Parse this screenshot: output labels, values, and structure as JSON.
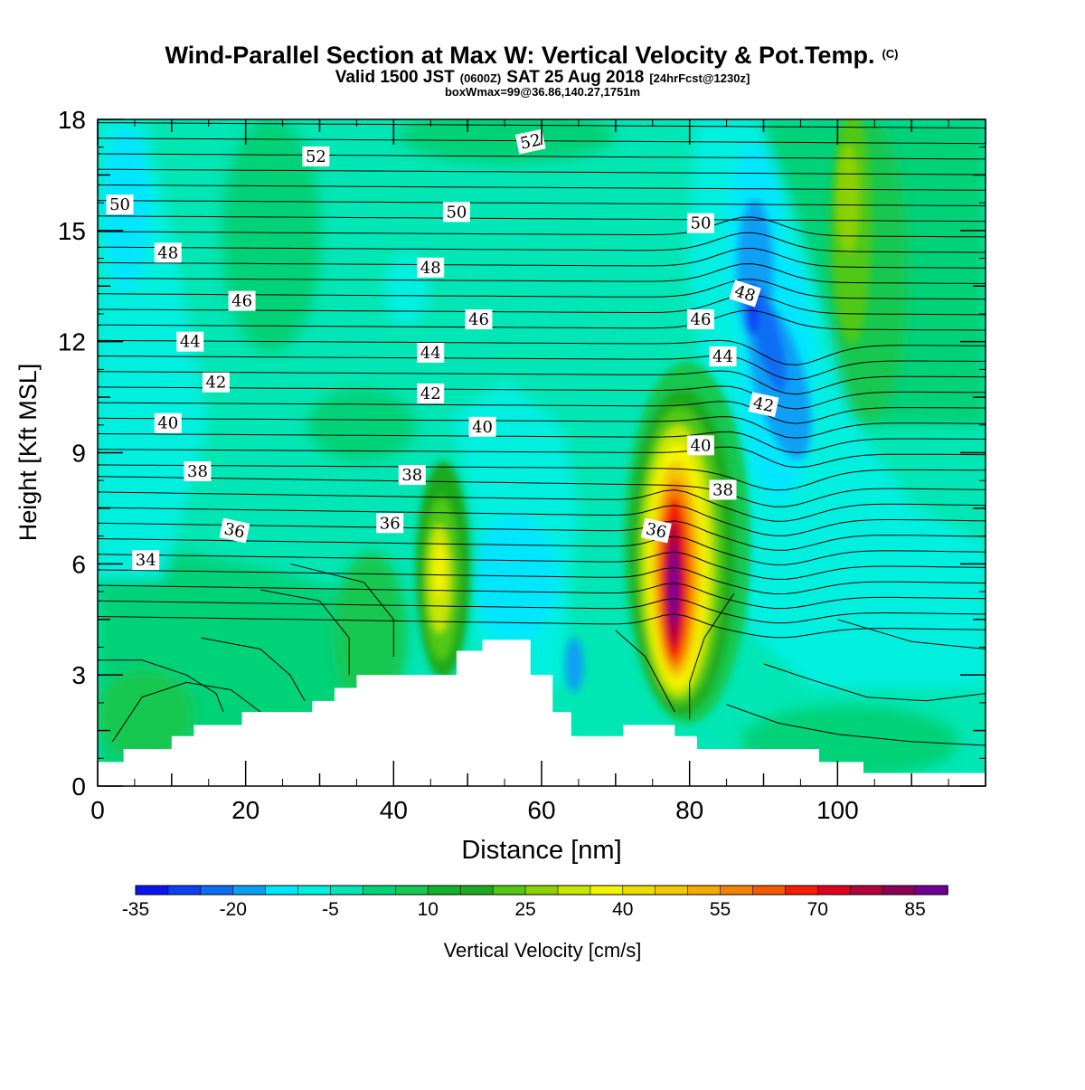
{
  "chart_data": {
    "type": "heatmap",
    "title": "Wind-Parallel Section at Max W: Vertical Velocity & Pot.Temp.",
    "title_mark": "(C)",
    "subtitle": {
      "main_a": "Valid 1500 JST",
      "small_a": "(0600Z)",
      "main_b": "SAT 25 Aug 2018",
      "small_b": "[24hrFcst@1230z]"
    },
    "subtitle2": "boxWmax=99@36.86,140.27,1751m",
    "xlabel": "Distance [nm]",
    "ylabel": "Height [Kft MSL]",
    "xlim": [
      0,
      120
    ],
    "ylim": [
      0,
      18
    ],
    "x_ticks": [
      0,
      20,
      40,
      60,
      80,
      100
    ],
    "y_ticks": [
      0,
      3,
      6,
      9,
      12,
      15,
      18
    ],
    "colorbar": {
      "label": "Vertical Velocity [cm/s]",
      "min": -35,
      "step": 5,
      "tick_labels": [
        -35,
        -20,
        -5,
        10,
        25,
        40,
        55,
        70,
        85
      ],
      "colors": [
        "#0a14f0",
        "#0a41f5",
        "#0a6ef5",
        "#0aa0f5",
        "#00e6ff",
        "#00f0e0",
        "#00e6b4",
        "#00d278",
        "#14c850",
        "#0fb428",
        "#1eaa1e",
        "#50c814",
        "#8cd200",
        "#c8e600",
        "#f5f500",
        "#f0dc00",
        "#f5c800",
        "#f5aa00",
        "#f58200",
        "#f55a00",
        "#f51e00",
        "#e1001e",
        "#b4003c",
        "#8c005a",
        "#6e0096"
      ]
    },
    "terrain": [
      [
        0,
        0.65
      ],
      [
        3.5,
        1.0
      ],
      [
        10,
        1.35
      ],
      [
        13,
        1.65
      ],
      [
        19.5,
        2.0
      ],
      [
        29,
        2.3
      ],
      [
        32,
        2.65
      ],
      [
        35,
        3.0
      ],
      [
        48.5,
        3.65
      ],
      [
        52,
        3.95
      ],
      [
        58.5,
        3.0
      ],
      [
        61.5,
        2.0
      ],
      [
        64,
        1.35
      ],
      [
        71,
        1.65
      ],
      [
        78,
        1.35
      ],
      [
        81,
        1.0
      ],
      [
        97.5,
        0.65
      ],
      [
        103.5,
        0.35
      ],
      [
        120,
        0.35
      ]
    ],
    "contour_labels": [
      {
        "text": "52",
        "x": 29.5,
        "y": 17.0,
        "angle": 0
      },
      {
        "text": "52",
        "x": 58.5,
        "y": 17.4,
        "angle": -12
      },
      {
        "text": "50",
        "x": 3.0,
        "y": 15.7,
        "angle": 0
      },
      {
        "text": "50",
        "x": 48.5,
        "y": 15.5,
        "angle": 0
      },
      {
        "text": "50",
        "x": 81.5,
        "y": 15.2,
        "angle": 0
      },
      {
        "text": "48",
        "x": 9.5,
        "y": 14.4,
        "angle": 0
      },
      {
        "text": "48",
        "x": 45.0,
        "y": 14.0,
        "angle": 0
      },
      {
        "text": "48",
        "x": 87.5,
        "y": 13.3,
        "angle": 18
      },
      {
        "text": "46",
        "x": 19.5,
        "y": 13.1,
        "angle": 0
      },
      {
        "text": "46",
        "x": 51.5,
        "y": 12.6,
        "angle": 0
      },
      {
        "text": "46",
        "x": 81.5,
        "y": 12.6,
        "angle": 0
      },
      {
        "text": "44",
        "x": 12.5,
        "y": 12.0,
        "angle": 0
      },
      {
        "text": "44",
        "x": 45.0,
        "y": 11.7,
        "angle": 0
      },
      {
        "text": "44",
        "x": 84.5,
        "y": 11.6,
        "angle": 0
      },
      {
        "text": "42",
        "x": 16.0,
        "y": 10.9,
        "angle": 0
      },
      {
        "text": "42",
        "x": 45.0,
        "y": 10.6,
        "angle": 0
      },
      {
        "text": "42",
        "x": 90.0,
        "y": 10.3,
        "angle": 12
      },
      {
        "text": "40",
        "x": 9.5,
        "y": 9.8,
        "angle": 0
      },
      {
        "text": "40",
        "x": 52.0,
        "y": 9.7,
        "angle": 0
      },
      {
        "text": "40",
        "x": 81.5,
        "y": 9.2,
        "angle": 0
      },
      {
        "text": "38",
        "x": 13.5,
        "y": 8.5,
        "angle": 0
      },
      {
        "text": "38",
        "x": 42.5,
        "y": 8.4,
        "angle": 0
      },
      {
        "text": "38",
        "x": 84.5,
        "y": 8.0,
        "angle": 0
      },
      {
        "text": "36",
        "x": 18.5,
        "y": 6.9,
        "angle": 12
      },
      {
        "text": "36",
        "x": 39.5,
        "y": 7.1,
        "angle": 0
      },
      {
        "text": "36",
        "x": 75.5,
        "y": 6.9,
        "angle": 12
      },
      {
        "text": "34",
        "x": 6.5,
        "y": 6.1,
        "angle": 0
      }
    ]
  }
}
